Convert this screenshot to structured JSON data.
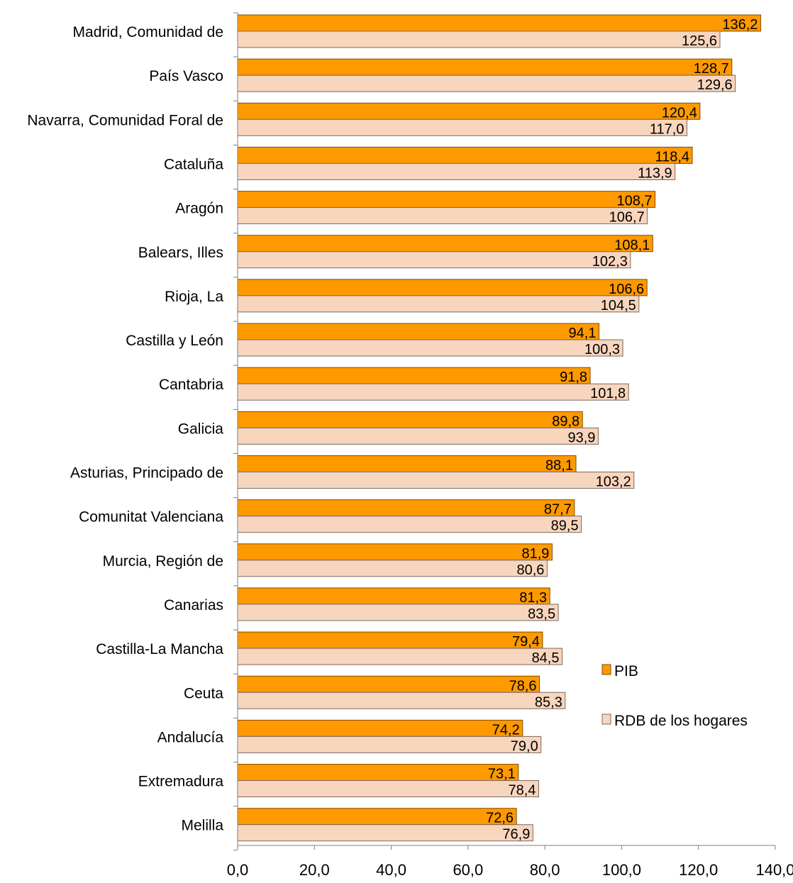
{
  "colors": {
    "pib": "#FF9900",
    "pib_stroke": "#7F4C00",
    "rdb": "#F8D5BD",
    "rdb_stroke": "#7A6A60",
    "axis": "#7F7F7F",
    "text": "#000000"
  },
  "chart_data": {
    "type": "bar",
    "orientation": "horizontal",
    "categories": [
      "Madrid, Comunidad de",
      "País Vasco",
      "Navarra, Comunidad Foral de",
      "Cataluña",
      "Aragón",
      "Balears, Illes",
      "Rioja, La",
      "Castilla y León",
      "Cantabria",
      "Galicia",
      "Asturias, Principado de",
      "Comunitat Valenciana",
      "Murcia, Región de",
      "Canarias",
      "Castilla-La Mancha",
      "Ceuta",
      "Andalucía",
      "Extremadura",
      "Melilla"
    ],
    "series": [
      {
        "name": "PIB",
        "values": [
          136.2,
          128.7,
          120.4,
          118.4,
          108.7,
          108.1,
          106.6,
          94.1,
          91.8,
          89.8,
          88.1,
          87.7,
          81.9,
          81.3,
          79.4,
          78.6,
          74.2,
          73.1,
          72.6
        ],
        "labels": [
          "136,2",
          "128,7",
          "120,4",
          "118,4",
          "108,7",
          "108,1",
          "106,6",
          "94,1",
          "91,8",
          "89,8",
          "88,1",
          "87,7",
          "81,9",
          "81,3",
          "79,4",
          "78,6",
          "74,2",
          "73,1",
          "72,6"
        ]
      },
      {
        "name": "RDB de los hogares",
        "values": [
          125.6,
          129.6,
          117.0,
          113.9,
          106.7,
          102.3,
          104.5,
          100.3,
          101.8,
          93.9,
          103.2,
          89.5,
          80.6,
          83.5,
          84.5,
          85.3,
          79.0,
          78.4,
          76.9
        ],
        "labels": [
          "125,6",
          "129,6",
          "117,0",
          "113,9",
          "106,7",
          "102,3",
          "104,5",
          "100,3",
          "101,8",
          "93,9",
          "103,2",
          "89,5",
          "80,6",
          "83,5",
          "84,5",
          "85,3",
          "79,0",
          "78,4",
          "76,9"
        ]
      }
    ],
    "xlim": [
      0,
      140
    ],
    "xticks": [
      0,
      20,
      40,
      60,
      80,
      100,
      120,
      140
    ],
    "xtick_labels": [
      "0,0",
      "20,0",
      "40,0",
      "60,0",
      "80,0",
      "100,0",
      "120,0",
      "140,0"
    ],
    "grid": false,
    "legend": {
      "placement": "right",
      "entries": [
        "PIB",
        "RDB de los hogares"
      ]
    }
  }
}
